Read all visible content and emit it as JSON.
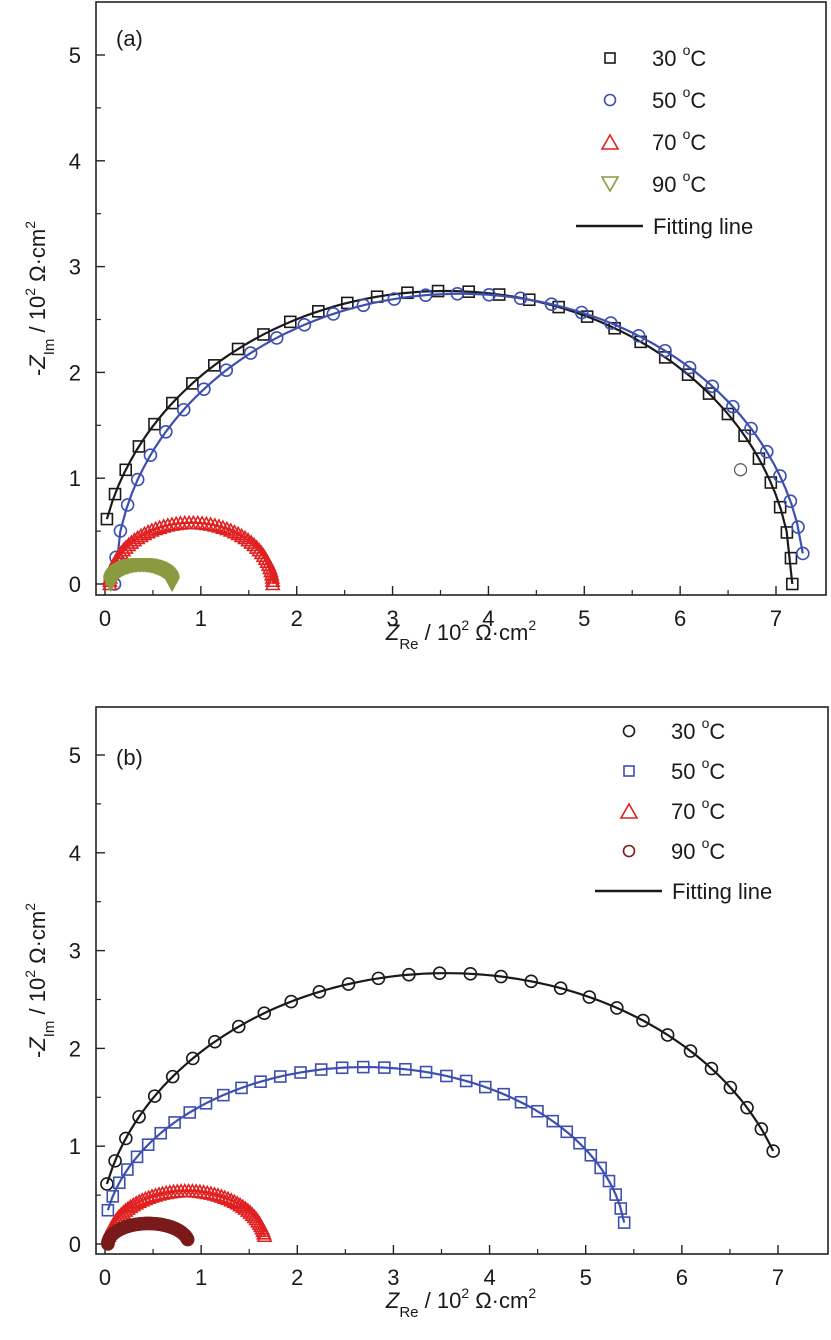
{
  "chart_data": [
    {
      "type": "scatter",
      "panel_label": "(a)",
      "xlabel": {
        "main": "Z",
        "sub": "Re",
        "rest": " / 10",
        "sup": "2",
        "unit": " Ω·cm",
        "unit_sup": "2"
      },
      "ylabel": {
        "prefix": "-",
        "main": "Z",
        "sub": "Im",
        "rest": " / 10",
        "sup": "2",
        "unit": " Ω·cm",
        "unit_sup": "2"
      },
      "xlim": [
        -0.05,
        7.3
      ],
      "ylim": [
        -0.1,
        5.45
      ],
      "xticks": [
        "0",
        "1",
        "2",
        "3",
        "4",
        "5",
        "6",
        "7"
      ],
      "yticks": [
        "0",
        "1",
        "2",
        "3",
        "4",
        "5"
      ],
      "grid": false,
      "legend_position": "top-right",
      "legend": [
        {
          "label": "30 °C",
          "num": "30",
          "deg": "o",
          "unit": "C",
          "marker": "square",
          "color": "#1a1a1a"
        },
        {
          "label": "50 °C",
          "num": "50",
          "deg": "o",
          "unit": "C",
          "marker": "circle",
          "color": "#3d4fb0"
        },
        {
          "label": "70 °C",
          "num": "70",
          "deg": "o",
          "unit": "C",
          "marker": "triangle-up",
          "color": "#e02020"
        },
        {
          "label": "90 °C",
          "num": "90",
          "deg": "o",
          "unit": "C",
          "marker": "triangle-down",
          "color": "#8a9a40"
        },
        {
          "label": "Fitting line",
          "marker": "line",
          "color": "#1a1a1a"
        }
      ],
      "series": [
        {
          "name": "30 °C",
          "marker": "square",
          "color": "#1a1a1a",
          "fit": {
            "xc": 3.55,
            "r": 3.62,
            "yscale": 0.765,
            "x0": 0.02,
            "x1": 7.17
          },
          "n_points": 34
        },
        {
          "name": "50 °C",
          "marker": "circle",
          "color": "#3d4fb0",
          "fit": {
            "xc": 3.7,
            "r": 3.6,
            "yscale": 0.762,
            "x0": 0.1,
            "x1": 7.28
          },
          "n_points": 34
        },
        {
          "name": "70 °C",
          "marker": "triangle-up",
          "color": "#e02020",
          "fit": {
            "xc": 0.9,
            "r": 0.85,
            "yscale": 0.68,
            "x0": 0.05,
            "x1": 1.76
          },
          "n_points": 60
        },
        {
          "name": "90 °C",
          "marker": "triangle-down",
          "color": "#8a9a40",
          "fit": {
            "xc": 0.38,
            "r": 0.32,
            "yscale": 0.58,
            "x0": 0.0,
            "x1": 0.7
          },
          "n_points": 70
        }
      ],
      "stray_point": {
        "x": 6.63,
        "y": 1.08,
        "color": "#555555"
      }
    },
    {
      "type": "scatter",
      "panel_label": "(b)",
      "xlabel": {
        "main": "Z",
        "sub": "Re",
        "rest": " / 10",
        "sup": "2",
        "unit": " Ω·cm",
        "unit_sup": "2"
      },
      "ylabel": {
        "prefix": "-",
        "main": "Z",
        "sub": "Im",
        "rest": " / 10",
        "sup": "2",
        "unit": " Ω·cm",
        "unit_sup": "2"
      },
      "xlim": [
        -0.05,
        7.3
      ],
      "ylim": [
        -0.1,
        5.45
      ],
      "xticks": [
        "0",
        "1",
        "2",
        "3",
        "4",
        "5",
        "6",
        "7"
      ],
      "yticks": [
        "0",
        "1",
        "2",
        "3",
        "4",
        "5"
      ],
      "grid": false,
      "legend_position": "top-right",
      "legend": [
        {
          "label": "30 °C",
          "num": "30",
          "deg": "o",
          "unit": "C",
          "marker": "circle",
          "color": "#1a1a1a"
        },
        {
          "label": "50 °C",
          "num": "50",
          "deg": "o",
          "unit": "C",
          "marker": "square",
          "color": "#3d4fb0"
        },
        {
          "label": "70 °C",
          "num": "70",
          "deg": "o",
          "unit": "C",
          "marker": "triangle-up",
          "color": "#e02020"
        },
        {
          "label": "90 °C",
          "num": "90",
          "deg": "o",
          "unit": "C",
          "marker": "circle",
          "color": "#7a1a1a"
        },
        {
          "label": "Fitting line",
          "marker": "line",
          "color": "#1a1a1a"
        }
      ],
      "series": [
        {
          "name": "30 °C",
          "marker": "circle",
          "color": "#1a1a1a",
          "fit": {
            "xc": 3.55,
            "r": 3.62,
            "yscale": 0.765,
            "x0": 0.02,
            "x1": 6.95
          },
          "n_points": 30
        },
        {
          "name": "50 °C",
          "marker": "square",
          "color": "#3d4fb0",
          "fit": {
            "xc": 2.7,
            "r": 2.72,
            "yscale": 0.665,
            "x0": 0.03,
            "x1": 5.4
          },
          "n_points": 36
        },
        {
          "name": "70 °C",
          "marker": "triangle-up",
          "color": "#e02020",
          "fit": {
            "xc": 0.85,
            "r": 0.82,
            "yscale": 0.66,
            "x0": 0.04,
            "x1": 1.66
          },
          "n_points": 60
        },
        {
          "name": "90 °C",
          "marker": "circle",
          "color": "#7a1a1a",
          "fit": {
            "xc": 0.45,
            "r": 0.42,
            "yscale": 0.5,
            "x0": 0.03,
            "x1": 0.86
          },
          "n_points": 70
        }
      ]
    }
  ]
}
